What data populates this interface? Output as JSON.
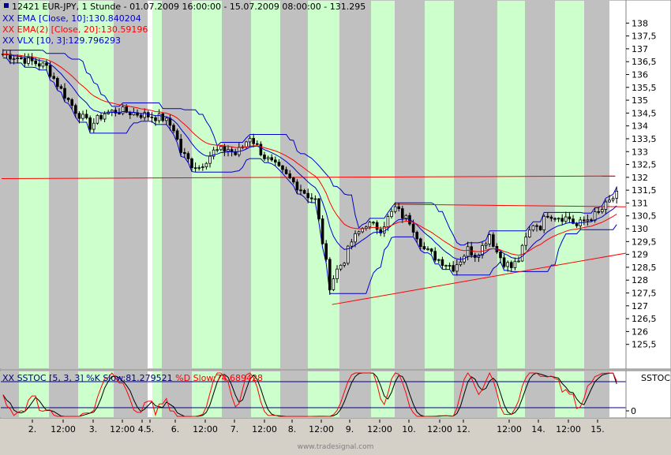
{
  "main_header": {
    "line1": "12421  EUR-JPY, 1 Stunde - 01.07.2009 16:00:00 - 15.07.2009 08:00:00 - 131.295",
    "line2": "XX EMA [Close, 10]:130.840204",
    "line3": "XX EMA(2) [Close, 20]:130.59196",
    "line4": "XX VLX [10, 3]:129.796293"
  },
  "sub_header": {
    "prefix": "XX SSTOC [5, 3, 3] ",
    "k_label": "%K Slow:81.279521",
    "d_label": " %D Slow:74.689428"
  },
  "sub_axis_label": "SSTOC",
  "sub_axis_tick": "0",
  "watermark": "www.tradesignal.com",
  "colors": {
    "background": "#ffffff",
    "session_band": "#ccffcc",
    "weekend_band": "#c0c0c0",
    "candle": "#000000",
    "ema10": "#0000cc",
    "ema20": "#ff0000",
    "vlx": "#0000cc",
    "trendline": "#ff0000",
    "stoch_k": "#ff0000",
    "stoch_d": "#000000",
    "stoch_level": "#000080"
  },
  "chart_data": {
    "type": "candlestick",
    "title": "12421  EUR-JPY, 1 Stunde - 01.07.2009 16:00:00 - 15.07.2009 08:00:00 - 131.295",
    "y_axis": {
      "min": 125,
      "max": 138.5,
      "ticks": [
        "138",
        "137,5",
        "137",
        "136,5",
        "136",
        "135,5",
        "135",
        "134,5",
        "134",
        "133,5",
        "133",
        "132,5",
        "132",
        "131,5",
        "131",
        "130,5",
        "130",
        "129,5",
        "129",
        "128,5",
        "128",
        "127,5",
        "127",
        "126,5",
        "126",
        "125,5"
      ]
    },
    "x_axis": {
      "tick_labels": [
        "2.",
        "12:00",
        "3.",
        "12:00",
        "4.",
        "5.",
        "6.",
        "12:00",
        "7.",
        "12:00",
        "8.",
        "12:00",
        "9.",
        "12:00",
        "10.",
        "12:00",
        "12.",
        "12:00",
        "14.",
        "12:00",
        "15."
      ],
      "range_start": "01.07.2009 16:00:00",
      "range_end": "15.07.2009 08:00:00"
    },
    "price_path": [
      [
        0,
        136.8
      ],
      [
        3,
        136.7
      ],
      [
        8,
        136.5
      ],
      [
        12,
        136.3
      ],
      [
        16,
        135.4
      ],
      [
        20,
        134.6
      ],
      [
        24,
        134.0
      ],
      [
        28,
        134.5
      ],
      [
        32,
        134.6
      ],
      [
        36,
        134.5
      ],
      [
        40,
        134.4
      ],
      [
        44,
        134.3
      ],
      [
        47,
        133.9
      ],
      [
        49,
        133.0
      ],
      [
        52,
        132.5
      ],
      [
        54,
        132.4
      ],
      [
        58,
        133.0
      ],
      [
        62,
        133.1
      ],
      [
        64,
        132.9
      ],
      [
        66,
        133.2
      ],
      [
        68,
        133.6
      ],
      [
        72,
        132.8
      ],
      [
        76,
        132.3
      ],
      [
        80,
        131.8
      ],
      [
        84,
        131.3
      ],
      [
        86,
        131.1
      ],
      [
        88,
        129.5
      ],
      [
        90,
        127.8
      ],
      [
        92,
        128.4
      ],
      [
        94,
        128.8
      ],
      [
        96,
        129.5
      ],
      [
        100,
        130.2
      ],
      [
        104,
        130.0
      ],
      [
        106,
        130.4
      ],
      [
        108,
        130.8
      ],
      [
        110,
        130.5
      ],
      [
        112,
        130.3
      ],
      [
        116,
        129.2
      ],
      [
        120,
        128.8
      ],
      [
        124,
        128.5
      ],
      [
        126,
        128.8
      ],
      [
        128,
        129.2
      ],
      [
        130,
        129.0
      ],
      [
        132,
        129.3
      ],
      [
        134,
        129.8
      ],
      [
        136,
        129.1
      ],
      [
        138,
        128.7
      ],
      [
        140,
        128.5
      ],
      [
        142,
        128.8
      ],
      [
        144,
        129.6
      ],
      [
        146,
        130.2
      ],
      [
        148,
        130.1
      ],
      [
        150,
        130.6
      ],
      [
        152,
        130.5
      ],
      [
        156,
        130.4
      ],
      [
        158,
        130.1
      ],
      [
        160,
        130.3
      ],
      [
        164,
        130.6
      ],
      [
        166,
        130.9
      ],
      [
        168,
        131.2
      ],
      [
        169,
        131.3
      ]
    ],
    "series": [
      {
        "name": "EMA [Close, 10]",
        "last_value": 130.840204
      },
      {
        "name": "EMA(2) [Close, 20]",
        "last_value": 130.59196
      },
      {
        "name": "VLX [10, 3]",
        "last_value": 129.796293
      }
    ],
    "trendlines": [
      {
        "from": [
          0,
          131.95
        ],
        "to": [
          169,
          132.05
        ]
      },
      {
        "from": [
          108,
          130.95
        ],
        "to": [
          174,
          130.85
        ]
      },
      {
        "from": [
          91,
          127.05
        ],
        "to": [
          174,
          129.1
        ]
      }
    ],
    "oscillator": {
      "name": "SSTOC [5, 3, 3]",
      "k_last": 81.279521,
      "d_last": 74.689428,
      "levels": [
        80,
        20
      ]
    }
  }
}
